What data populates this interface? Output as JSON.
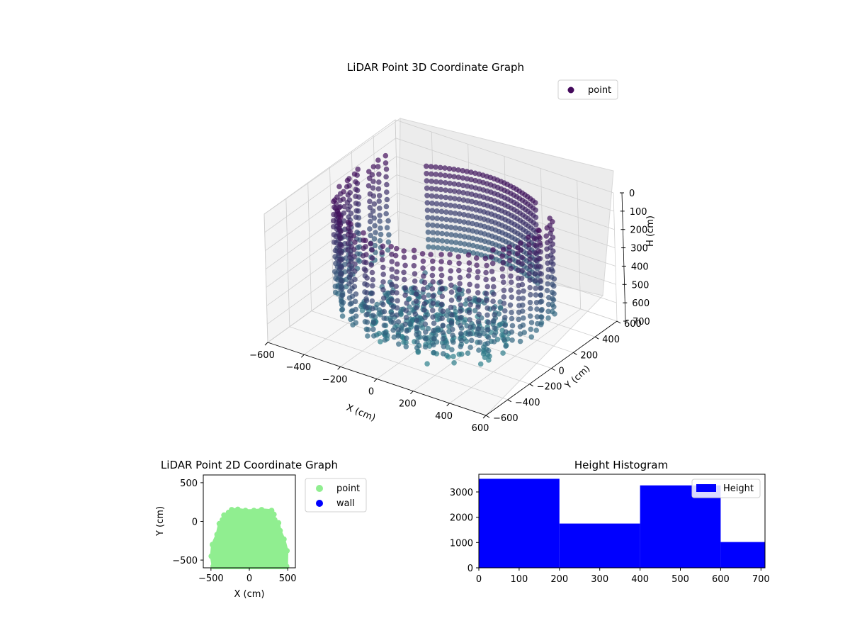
{
  "chart_data": [
    {
      "type": "scatter",
      "projection": "3d",
      "title": "LiDAR Point 3D Coordinate Graph",
      "xlabel": "X (cm)",
      "ylabel": "Y (cm)",
      "zlabel": "H (cm)",
      "xlim": [
        -600,
        600
      ],
      "ylim": [
        -600,
        600
      ],
      "zlim": [
        700,
        0
      ],
      "z_inverted": true,
      "xticks": [
        "−600",
        "−400",
        "−200",
        "0",
        "200",
        "400",
        "600"
      ],
      "yticks": [
        "−600",
        "−400",
        "−200",
        "0",
        "200",
        "400",
        "600"
      ],
      "zticks": [
        "0",
        "100",
        "200",
        "300",
        "400",
        "500",
        "600",
        "700"
      ],
      "colormap": "viridis-like (dark purple at top, teal at bottom)",
      "legend": {
        "position": "top-right",
        "entries": [
          {
            "name": "point",
            "color": "#440a5c"
          }
        ]
      },
      "series": [
        {
          "name": "point",
          "shape": "ring of vertical point columns, radius ~500 cm, open toward +Y, plus floor points",
          "h_range": [
            0,
            700
          ]
        }
      ],
      "grid": true
    },
    {
      "type": "scatter",
      "title": "LiDAR Point 2D Coordinate Graph",
      "xlabel": "X (cm)",
      "ylabel": "Y (cm)",
      "xlim": [
        -600,
        600
      ],
      "ylim": [
        -600,
        600
      ],
      "xticks": [
        "−500",
        "0",
        "500"
      ],
      "yticks": [
        "−500",
        "0",
        "500"
      ],
      "legend": {
        "position": "outside-right",
        "entries": [
          {
            "name": "point",
            "color": "#90ee90"
          },
          {
            "name": "wall",
            "color": "#0000ff"
          }
        ]
      },
      "series": [
        {
          "name": "point",
          "color": "#90ee90",
          "region": "filled blob x ∈ [-500, 500], y ∈ [-600, 150]"
        },
        {
          "name": "wall",
          "color": "#0000ff",
          "points": []
        }
      ],
      "grid": false
    },
    {
      "type": "bar",
      "subtype": "histogram",
      "title": "Height Histogram",
      "bins": [
        [
          0,
          200
        ],
        [
          200,
          400
        ],
        [
          400,
          600
        ],
        [
          600,
          710
        ]
      ],
      "values": [
        3520,
        1750,
        3260,
        1020
      ],
      "xlim": [
        0,
        710
      ],
      "ylim": [
        0,
        3700
      ],
      "xticks": [
        "0",
        "100",
        "200",
        "300",
        "400",
        "500",
        "600",
        "700"
      ],
      "yticks": [
        "0",
        "1000",
        "2000",
        "3000"
      ],
      "color": "#0000ff",
      "legend": {
        "position": "top-right",
        "entries": [
          {
            "name": "Height",
            "color": "#0000ff"
          }
        ]
      },
      "grid": false
    }
  ]
}
